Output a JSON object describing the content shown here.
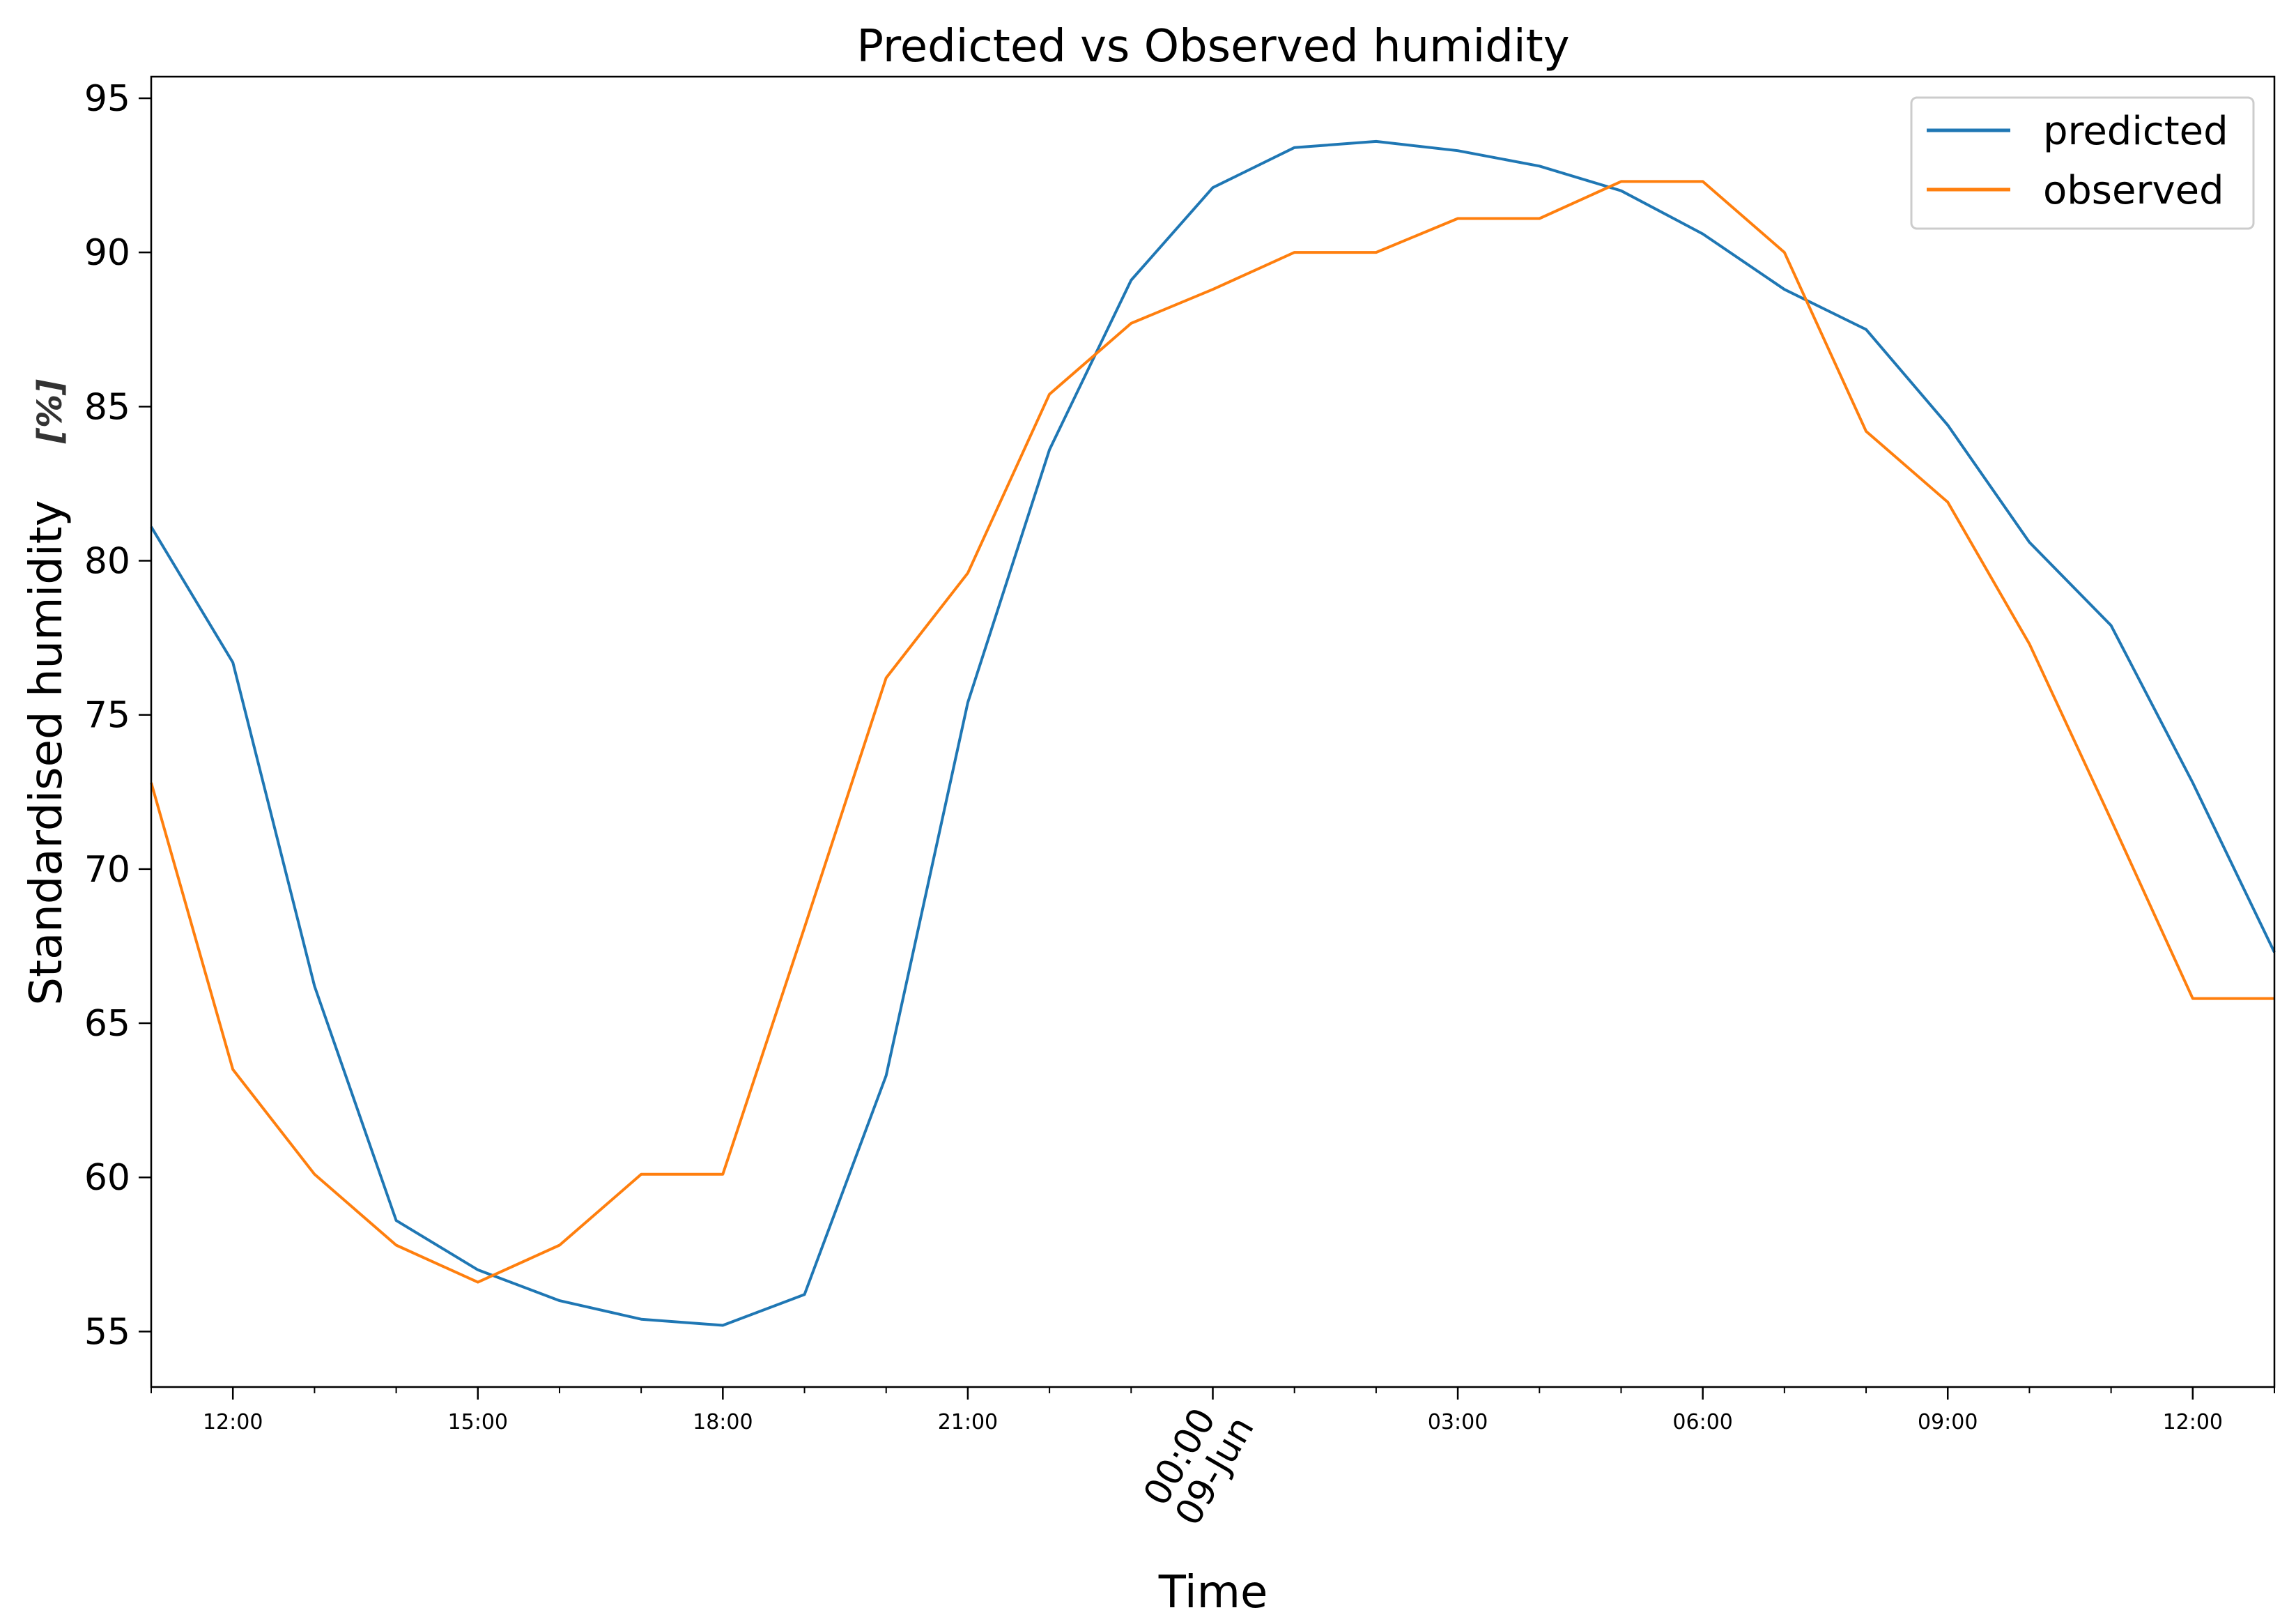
{
  "chart_data": {
    "type": "line",
    "title": "Predicted vs Observed humidity",
    "xlabel": "Time",
    "ylabel": "Standardised humidity",
    "ylabel_unit": "[%]",
    "ylim": [
      53.2,
      95.7
    ],
    "yticks": [
      55,
      60,
      65,
      70,
      75,
      80,
      85,
      90,
      95
    ],
    "x": [
      "11:00",
      "12:00",
      "13:00",
      "14:00",
      "15:00",
      "16:00",
      "17:00",
      "18:00",
      "19:00",
      "20:00",
      "21:00",
      "22:00",
      "23:00",
      "00:00",
      "01:00",
      "02:00",
      "03:00",
      "04:00",
      "05:00",
      "06:00",
      "07:00",
      "08:00",
      "09:00",
      "10:00",
      "11:00",
      "12:00",
      "13:00"
    ],
    "xticks": [
      {
        "label": "12:00",
        "at": "12:00",
        "major": false
      },
      {
        "label": "15:00",
        "at": "15:00",
        "major": false
      },
      {
        "label": "18:00",
        "at": "18:00",
        "major": false
      },
      {
        "label": "21:00",
        "at": "21:00",
        "major": false
      },
      {
        "label": "00:00",
        "label2": "09-Jun",
        "at": "00:00",
        "major": true
      },
      {
        "label": "03:00",
        "at": "03:00",
        "major": false
      },
      {
        "label": "06:00",
        "at": "06:00",
        "major": false
      },
      {
        "label": "09:00",
        "at": "09:00",
        "major": false
      },
      {
        "label": "12:00",
        "at": "12:00",
        "major": false,
        "day": 2
      }
    ],
    "series": [
      {
        "name": "predicted",
        "color": "#1f77b4",
        "values": [
          81.1,
          76.7,
          66.2,
          58.6,
          57.0,
          56.0,
          55.4,
          55.2,
          56.2,
          63.3,
          75.4,
          83.6,
          89.1,
          92.1,
          93.4,
          93.6,
          93.3,
          92.8,
          92.0,
          90.6,
          88.8,
          87.5,
          84.4,
          80.6,
          77.9,
          72.8,
          67.3
        ]
      },
      {
        "name": "observed",
        "color": "#ff7f0e",
        "values": [
          72.8,
          63.5,
          60.1,
          57.8,
          56.6,
          57.8,
          60.1,
          60.1,
          68.1,
          76.2,
          79.6,
          85.4,
          87.7,
          88.8,
          90.0,
          90.0,
          91.1,
          91.1,
          92.3,
          92.3,
          90.0,
          84.2,
          81.9,
          77.3,
          71.6,
          65.8,
          65.8
        ]
      }
    ],
    "legend": "top-right",
    "grid": false
  }
}
